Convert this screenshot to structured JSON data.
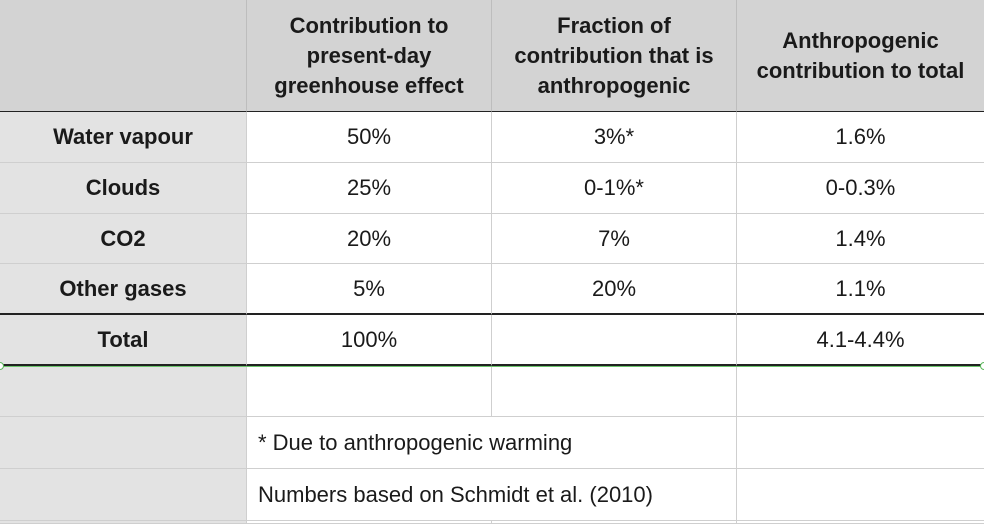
{
  "header": {
    "col0": "",
    "col1": "Contribution to present-day greenhouse effect",
    "col2": "Fraction of contribution that is anthropogenic",
    "col3": "Anthropogenic contribution to total"
  },
  "rows": [
    {
      "label": "Water vapour",
      "contribution": "50%",
      "fraction": "3%*",
      "anthro": "1.6%"
    },
    {
      "label": "Clouds",
      "contribution": "25%",
      "fraction": "0-1%*",
      "anthro": "0-0.3%"
    },
    {
      "label": "CO2",
      "contribution": "20%",
      "fraction": "7%",
      "anthro": "1.4%"
    },
    {
      "label": "Other gases",
      "contribution": "5%",
      "fraction": "20%",
      "anthro": "1.1%"
    }
  ],
  "total": {
    "label": "Total",
    "contribution": "100%",
    "fraction": "",
    "anthro": "4.1-4.4%"
  },
  "notes": {
    "footnote": "* Due to anthropogenic warming",
    "source": "Numbers based on Schmidt et al. (2010)"
  },
  "colors": {
    "header_bg": "#d3d3d3",
    "rowhead_bg": "#e3e3e3",
    "selection_line": "#6cc46c"
  }
}
